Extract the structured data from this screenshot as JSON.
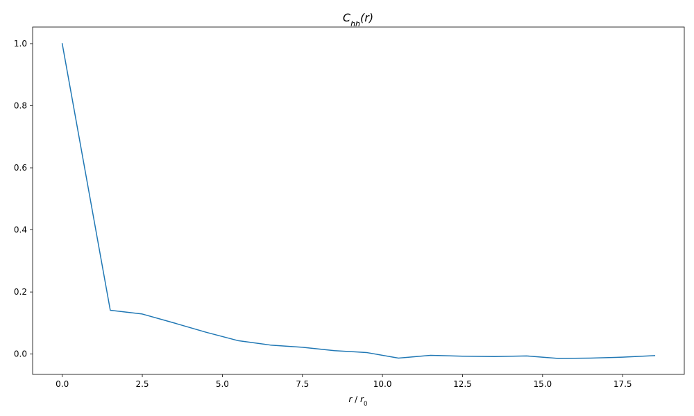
{
  "chart_data": {
    "type": "line",
    "title": {
      "base": "C",
      "sub": "hh",
      "rest": "(r)"
    },
    "xlabel": {
      "a": "r",
      "sep": " / ",
      "b": "r",
      "sub": "0"
    },
    "ylabel": "",
    "xlim": [
      -0.925,
      19.425
    ],
    "ylim": [
      -0.0655,
      1.0535
    ],
    "xticks": [
      {
        "value": 0.0,
        "label": "0.0"
      },
      {
        "value": 2.5,
        "label": "2.5"
      },
      {
        "value": 5.0,
        "label": "5.0"
      },
      {
        "value": 7.5,
        "label": "7.5"
      },
      {
        "value": 10.0,
        "label": "10.0"
      },
      {
        "value": 12.5,
        "label": "12.5"
      },
      {
        "value": 15.0,
        "label": "15.0"
      },
      {
        "value": 17.5,
        "label": "17.5"
      }
    ],
    "yticks": [
      {
        "value": 0.0,
        "label": "0.0"
      },
      {
        "value": 0.2,
        "label": "0.2"
      },
      {
        "value": 0.4,
        "label": "0.4"
      },
      {
        "value": 0.6,
        "label": "0.6"
      },
      {
        "value": 0.8,
        "label": "0.8"
      },
      {
        "value": 1.0,
        "label": "1.0"
      }
    ],
    "grid": false,
    "series": [
      {
        "color": "#1f77b4",
        "x": [
          0,
          1.5,
          2.5,
          3.5,
          4.5,
          5.5,
          6.5,
          7.5,
          8.5,
          9.5,
          10.5,
          11.5,
          12.5,
          13.5,
          14.5,
          15.5,
          16.5,
          17.5,
          18.5
        ],
        "y": [
          1.0,
          0.141,
          0.129,
          0.1,
          0.07,
          0.043,
          0.029,
          0.022,
          0.011,
          0.005,
          -0.013,
          -0.004,
          -0.007,
          -0.008,
          -0.006,
          -0.014,
          -0.013,
          -0.01,
          -0.005
        ]
      }
    ]
  }
}
